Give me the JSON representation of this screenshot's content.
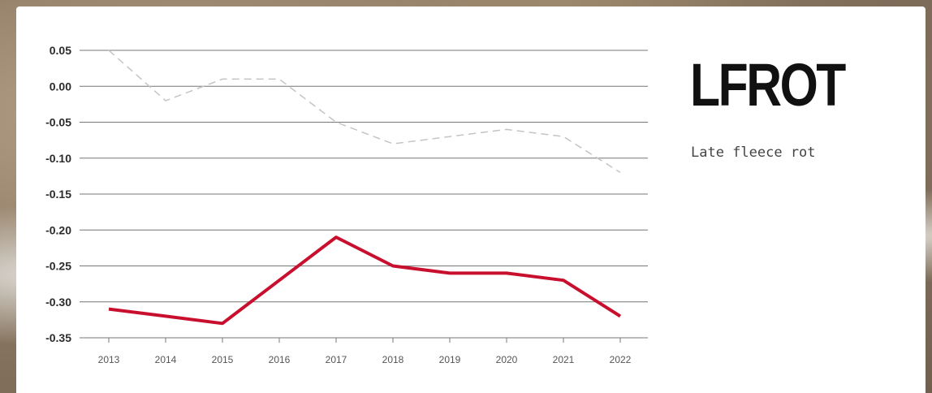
{
  "header": {
    "title": "LFROT",
    "subtitle": "Late fleece rot"
  },
  "chart_data": {
    "type": "line",
    "x": [
      "2013",
      "2014",
      "2015",
      "2016",
      "2017",
      "2018",
      "2019",
      "2020",
      "2021",
      "2022"
    ],
    "yticks": [
      "0.05",
      "0.00",
      "-0.05",
      "-0.10",
      "-0.15",
      "-0.20",
      "-0.25",
      "-0.30",
      "-0.35"
    ],
    "ylim": [
      -0.35,
      0.05
    ],
    "grid": true,
    "legend": "none",
    "title": "",
    "xlabel": "",
    "ylabel": "",
    "series": [
      {
        "style": "solid",
        "color": "#c8102e",
        "values": [
          -0.31,
          -0.32,
          -0.33,
          -0.27,
          -0.21,
          -0.25,
          -0.26,
          -0.26,
          -0.27,
          -0.32
        ]
      },
      {
        "style": "dashed",
        "color": "#c4c4c4",
        "values": [
          0.05,
          -0.02,
          0.01,
          0.01,
          -0.05,
          -0.08,
          -0.07,
          -0.06,
          -0.07,
          -0.12
        ]
      }
    ]
  }
}
